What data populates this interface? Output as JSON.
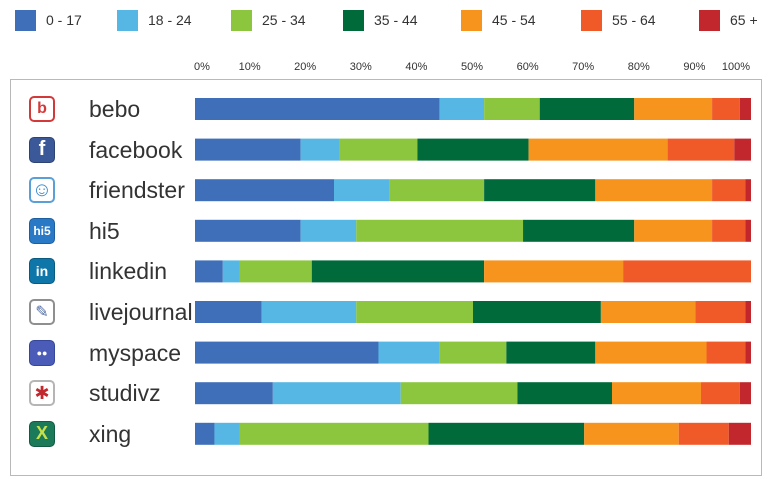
{
  "chart_data": {
    "type": "bar",
    "orientation": "horizontal-stacked-100",
    "x_tick_labels": [
      "0%",
      "10%",
      "20%",
      "30%",
      "40%",
      "50%",
      "60%",
      "70%",
      "80%",
      "90%",
      "100%"
    ],
    "xlim": [
      0,
      100
    ],
    "legend_position": "top",
    "grid": false,
    "categories": [
      "bebo",
      "facebook",
      "friendster",
      "hi5",
      "linkedin",
      "livejournal",
      "myspace",
      "studivz",
      "xing"
    ],
    "series": [
      {
        "name": "0 - 17",
        "color": "#3f6fb8",
        "values": [
          44,
          19,
          25,
          19,
          5,
          12,
          33,
          14,
          3.5
        ]
      },
      {
        "name": "18 - 24",
        "color": "#57b7e4",
        "values": [
          8,
          7,
          10,
          10,
          3,
          17,
          11,
          23,
          4.5
        ]
      },
      {
        "name": "25 - 34",
        "color": "#8cc63f",
        "values": [
          10,
          14,
          17,
          30,
          13,
          21,
          12,
          21,
          34
        ]
      },
      {
        "name": "35 - 44",
        "color": "#006a3a",
        "values": [
          17,
          20,
          20,
          20,
          31,
          23,
          16,
          17,
          28
        ]
      },
      {
        "name": "45 - 54",
        "color": "#f7941d",
        "values": [
          14,
          25,
          21,
          14,
          25,
          17,
          20,
          16,
          17
        ]
      },
      {
        "name": "55 - 64",
        "color": "#f05a28",
        "values": [
          5,
          12,
          6,
          6,
          23,
          9,
          7,
          7,
          9
        ]
      },
      {
        "name": "65 +",
        "color": "#c1272d",
        "values": [
          2,
          3,
          1,
          1,
          0,
          1,
          1,
          2,
          4
        ]
      }
    ]
  },
  "site_icons": [
    {
      "name": "bebo-icon",
      "glyph": "b"
    },
    {
      "name": "facebook-icon",
      "glyph": "f"
    },
    {
      "name": "friendster-icon",
      "glyph": "☺"
    },
    {
      "name": "hi5-icon",
      "glyph": "hi5"
    },
    {
      "name": "linkedin-icon",
      "glyph": "in"
    },
    {
      "name": "livejournal-icon",
      "glyph": "✎"
    },
    {
      "name": "myspace-icon",
      "glyph": "●●"
    },
    {
      "name": "studivz-icon",
      "glyph": "✱"
    },
    {
      "name": "xing-icon",
      "glyph": "X"
    }
  ]
}
